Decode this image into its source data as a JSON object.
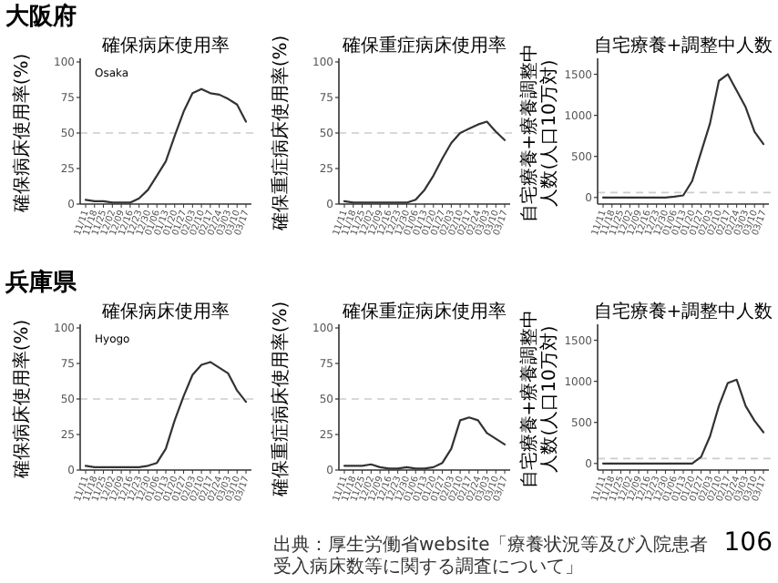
{
  "chart_data": [
    {
      "type": "line",
      "title": "確保病床使用率",
      "ylabel": "確保病床使用率(%)",
      "annotations": [
        "大阪府",
        "Osaka"
      ],
      "categories": [
        "11/11",
        "11/18",
        "11/25",
        "12/02",
        "12/09",
        "12/16",
        "12/23",
        "12/30",
        "01/06",
        "01/13",
        "01/20",
        "01/27",
        "02/03",
        "02/10",
        "02/17",
        "02/24",
        "03/03",
        "03/10",
        "03/17"
      ],
      "color": "#333333",
      "ylim": [
        0,
        100
      ],
      "yticks": [
        0,
        25,
        50,
        75,
        100
      ],
      "ref_lines": [
        {
          "axis": "y",
          "value": 50,
          "color": "#cccccc",
          "line_style": "dashed"
        }
      ],
      "grid": false,
      "values": [
        3,
        2,
        2,
        1,
        1,
        1,
        4,
        10,
        20,
        30,
        48,
        65,
        78,
        81,
        78,
        77,
        74,
        70,
        58
      ]
    },
    {
      "type": "line",
      "title": "確保重症病床使用率",
      "ylabel": "確保重症病床使用率(%)",
      "categories": [
        "11/11",
        "11/18",
        "11/25",
        "12/02",
        "12/09",
        "12/16",
        "12/23",
        "12/30",
        "01/06",
        "01/13",
        "01/20",
        "01/27",
        "02/03",
        "02/10",
        "02/17",
        "02/24",
        "03/03",
        "03/10",
        "03/17"
      ],
      "color": "#333333",
      "ylim": [
        0,
        100
      ],
      "yticks": [
        0,
        25,
        50,
        75,
        100
      ],
      "ref_lines": [
        {
          "axis": "y",
          "value": 50,
          "color": "#cccccc",
          "line_style": "dashed"
        }
      ],
      "grid": false,
      "values": [
        2,
        1,
        1,
        1,
        1,
        1,
        1,
        1,
        3,
        10,
        20,
        32,
        43,
        50,
        53,
        56,
        58,
        51,
        45
      ]
    },
    {
      "type": "line",
      "title": "自宅療養+調整中人数",
      "ylabel": "自宅療養+療養調整中人数(人口10万対)",
      "categories": [
        "11/11",
        "11/18",
        "11/25",
        "12/02",
        "12/09",
        "12/16",
        "12/23",
        "12/30",
        "01/06",
        "01/13",
        "01/20",
        "01/27",
        "02/03",
        "02/10",
        "02/17",
        "02/24",
        "03/03",
        "03/10",
        "03/17"
      ],
      "color": "#333333",
      "ylim": [
        -80,
        1650
      ],
      "yticks": [
        0,
        500,
        1000,
        1500
      ],
      "ref_lines": [
        {
          "axis": "y",
          "value": 60,
          "color": "#cccccc",
          "line_style": "dashed"
        }
      ],
      "grid": false,
      "values": [
        0,
        0,
        0,
        0,
        0,
        0,
        0,
        0,
        10,
        25,
        200,
        550,
        900,
        1420,
        1500,
        1300,
        1100,
        800,
        650
      ]
    },
    {
      "type": "line",
      "title": "確保病床使用率",
      "ylabel": "確保病床使用率(%)",
      "annotations": [
        "兵庫県",
        "Hyogo"
      ],
      "categories": [
        "11/11",
        "11/18",
        "11/25",
        "12/02",
        "12/09",
        "12/16",
        "12/23",
        "12/30",
        "01/06",
        "01/13",
        "01/20",
        "01/27",
        "02/03",
        "02/10",
        "02/17",
        "02/24",
        "03/03",
        "03/10",
        "03/17"
      ],
      "color": "#333333",
      "ylim": [
        0,
        100
      ],
      "yticks": [
        0,
        25,
        50,
        75,
        100
      ],
      "ref_lines": [
        {
          "axis": "y",
          "value": 50,
          "color": "#cccccc",
          "line_style": "dashed"
        }
      ],
      "grid": false,
      "values": [
        3,
        2,
        2,
        2,
        2,
        2,
        2,
        3,
        5,
        15,
        35,
        52,
        67,
        74,
        76,
        72,
        68,
        56,
        48
      ]
    },
    {
      "type": "line",
      "title": "確保重症病床使用率",
      "ylabel": "確保重症病床使用率(%)",
      "categories": [
        "11/11",
        "11/18",
        "11/25",
        "12/02",
        "12/09",
        "12/16",
        "12/23",
        "12/30",
        "01/06",
        "01/13",
        "01/20",
        "01/27",
        "02/03",
        "02/10",
        "02/17",
        "02/24",
        "03/03",
        "03/10",
        "03/17"
      ],
      "color": "#333333",
      "ylim": [
        0,
        100
      ],
      "yticks": [
        0,
        25,
        50,
        75,
        100
      ],
      "ref_lines": [
        {
          "axis": "y",
          "value": 50,
          "color": "#cccccc",
          "line_style": "dashed"
        }
      ],
      "grid": false,
      "values": [
        3,
        3,
        3,
        4,
        2,
        1,
        1,
        2,
        1,
        1,
        2,
        5,
        15,
        35,
        37,
        35,
        26,
        22,
        18
      ]
    },
    {
      "type": "line",
      "title": "自宅療養+調整中人数",
      "ylabel": "自宅療養+療養調整中人数(人口10万対)",
      "annotations": [
        "出典：厚生労働省website「療養状況等及び入院患者受入病床数等に関する調査について」",
        "106"
      ],
      "categories": [
        "11/11",
        "11/18",
        "11/25",
        "12/02",
        "12/09",
        "12/16",
        "12/23",
        "12/30",
        "01/06",
        "01/13",
        "01/20",
        "01/27",
        "02/03",
        "02/10",
        "02/17",
        "02/24",
        "03/03",
        "03/10",
        "03/17"
      ],
      "color": "#333333",
      "ylim": [
        -80,
        1650
      ],
      "yticks": [
        0,
        500,
        1000,
        1500
      ],
      "ref_lines": [
        {
          "axis": "y",
          "value": 60,
          "color": "#cccccc",
          "line_style": "dashed"
        }
      ],
      "grid": false,
      "values": [
        0,
        0,
        0,
        0,
        0,
        0,
        0,
        0,
        0,
        0,
        0,
        80,
        330,
        700,
        980,
        1020,
        700,
        520,
        380
      ]
    }
  ]
}
